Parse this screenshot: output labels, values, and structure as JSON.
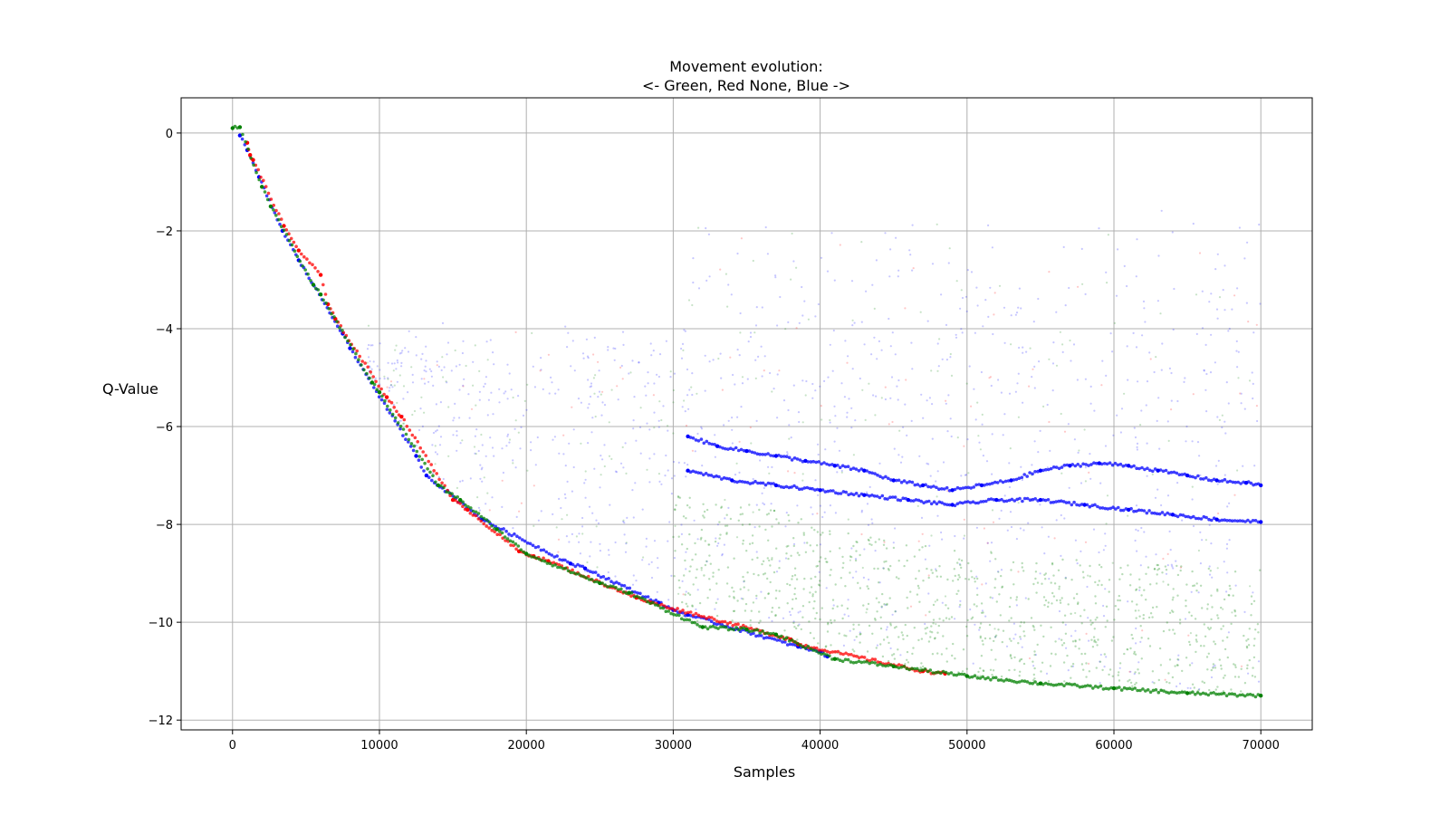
{
  "chart_data": {
    "type": "scatter",
    "title": "Movement evolution:",
    "subtitle": "<- Green, Red None, Blue ->",
    "xlabel": "Samples",
    "ylabel": "Q-Value",
    "xlim": [
      -3500,
      73500
    ],
    "ylim": [
      -12.2,
      0.72
    ],
    "xticks": [
      0,
      10000,
      20000,
      30000,
      40000,
      50000,
      60000,
      70000
    ],
    "xtick_labels": [
      "0",
      "10000",
      "20000",
      "30000",
      "40000",
      "50000",
      "60000",
      "70000"
    ],
    "yticks": [
      0,
      -2,
      -4,
      -6,
      -8,
      -10,
      -12
    ],
    "ytick_labels": [
      "0",
      "−2",
      "−4",
      "−6",
      "−8",
      "−10",
      "−12"
    ],
    "grid": true,
    "legend": "none",
    "series": [
      {
        "color": "#0000ff",
        "description": "Blue (move right) - main descending curve segments",
        "points": [
          [
            500,
            -0.05
          ],
          [
            1000,
            -0.35
          ],
          [
            1800,
            -0.9
          ],
          [
            3400,
            -2.0
          ],
          [
            4500,
            -2.6
          ],
          [
            7500,
            -4.1
          ],
          [
            8000,
            -4.4
          ],
          [
            12500,
            -6.6
          ],
          [
            13200,
            -7.0
          ],
          [
            17000,
            -7.9
          ],
          [
            23000,
            -8.8
          ],
          [
            24000,
            -8.9
          ],
          [
            29000,
            -9.6
          ],
          [
            30000,
            -9.75
          ],
          [
            31000,
            -9.85
          ],
          [
            38500,
            -10.5
          ],
          [
            40000,
            -10.6
          ],
          [
            40500,
            -10.7
          ]
        ]
      },
      {
        "color": "#0000ff",
        "description": "Blue upper band after 31000 samples",
        "points": [
          [
            31000,
            -6.2
          ],
          [
            33000,
            -6.4
          ],
          [
            35000,
            -6.5
          ],
          [
            37000,
            -6.6
          ],
          [
            39000,
            -6.7
          ],
          [
            41000,
            -6.8
          ],
          [
            43000,
            -6.9
          ],
          [
            45000,
            -7.1
          ],
          [
            47000,
            -7.2
          ],
          [
            49000,
            -7.3
          ],
          [
            51000,
            -7.2
          ],
          [
            53000,
            -7.1
          ],
          [
            55000,
            -6.9
          ],
          [
            57000,
            -6.8
          ],
          [
            59000,
            -6.75
          ],
          [
            61000,
            -6.8
          ],
          [
            63000,
            -6.9
          ],
          [
            65000,
            -7.0
          ],
          [
            67000,
            -7.1
          ],
          [
            69000,
            -7.15
          ],
          [
            70000,
            -7.2
          ]
        ]
      },
      {
        "color": "#0000ff",
        "description": "Blue lower band after 31000 samples",
        "points": [
          [
            31000,
            -6.9
          ],
          [
            34000,
            -7.1
          ],
          [
            37000,
            -7.2
          ],
          [
            40000,
            -7.3
          ],
          [
            43000,
            -7.4
          ],
          [
            46000,
            -7.5
          ],
          [
            49000,
            -7.6
          ],
          [
            52000,
            -7.5
          ],
          [
            55000,
            -7.5
          ],
          [
            58000,
            -7.6
          ],
          [
            61000,
            -7.7
          ],
          [
            64000,
            -7.8
          ],
          [
            67000,
            -7.9
          ],
          [
            70000,
            -7.95
          ]
        ]
      },
      {
        "color": "#ff0000",
        "description": "Red (none) segments",
        "points": [
          [
            1000,
            -0.2
          ],
          [
            1200,
            -0.45
          ],
          [
            1400,
            -0.55
          ],
          [
            3500,
            -1.9
          ],
          [
            4500,
            -2.4
          ],
          [
            6000,
            -2.9
          ],
          [
            6500,
            -3.5
          ],
          [
            7000,
            -3.8
          ],
          [
            10500,
            -5.4
          ],
          [
            11500,
            -5.8
          ],
          [
            15000,
            -7.5
          ],
          [
            16000,
            -7.7
          ],
          [
            19500,
            -8.55
          ],
          [
            20500,
            -8.65
          ],
          [
            21500,
            -8.75
          ],
          [
            27500,
            -9.5
          ],
          [
            28500,
            -9.6
          ],
          [
            38000,
            -10.35
          ],
          [
            38500,
            -10.45
          ],
          [
            47000,
            -11.0
          ],
          [
            48500,
            -11.05
          ]
        ]
      },
      {
        "color": "#008000",
        "description": "Green (move left) - descending curve and lower floor",
        "points": [
          [
            0,
            0.1
          ],
          [
            500,
            0.12
          ],
          [
            2000,
            -1.1
          ],
          [
            2600,
            -1.5
          ],
          [
            5500,
            -3.1
          ],
          [
            6000,
            -3.3
          ],
          [
            9500,
            -5.1
          ],
          [
            10000,
            -5.3
          ],
          [
            14000,
            -7.2
          ],
          [
            15500,
            -7.5
          ],
          [
            18000,
            -8.1
          ],
          [
            20000,
            -8.6
          ],
          [
            25000,
            -9.2
          ],
          [
            27000,
            -9.4
          ],
          [
            32000,
            -10.1
          ],
          [
            35000,
            -10.15
          ],
          [
            37000,
            -10.25
          ],
          [
            41000,
            -10.75
          ],
          [
            45000,
            -10.9
          ],
          [
            50000,
            -11.1
          ],
          [
            55000,
            -11.25
          ],
          [
            60000,
            -11.35
          ],
          [
            65000,
            -11.45
          ],
          [
            70000,
            -11.5
          ]
        ]
      }
    ]
  }
}
